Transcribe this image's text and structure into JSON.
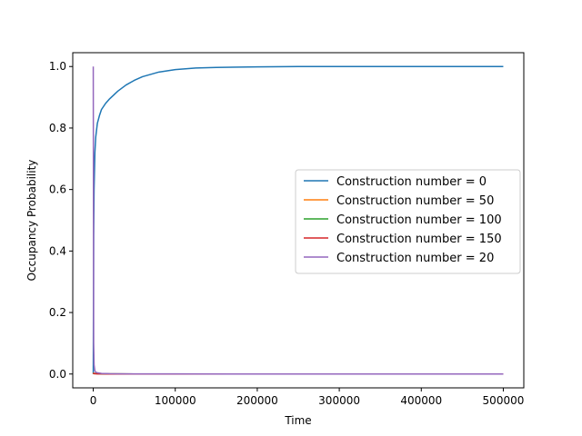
{
  "chart_data": {
    "type": "line",
    "title": "",
    "xlabel": "Time",
    "ylabel": "Occupancy Probability",
    "xlim": [
      -25000,
      525000
    ],
    "ylim": [
      -0.045,
      1.045
    ],
    "x_ticks": [
      0,
      100000,
      200000,
      300000,
      400000,
      500000
    ],
    "x_tick_labels": [
      "0",
      "100000",
      "200000",
      "300000",
      "400000",
      "500000"
    ],
    "y_ticks": [
      0.0,
      0.2,
      0.4,
      0.6,
      0.8,
      1.0
    ],
    "y_tick_labels": [
      "0.0",
      "0.2",
      "0.4",
      "0.6",
      "0.8",
      "1.0"
    ],
    "grid": false,
    "legend_position": "center-right",
    "series": [
      {
        "name": "Construction number = 0",
        "color": "#1f77b4",
        "x": [
          0,
          500,
          1000,
          2000,
          3000,
          5000,
          7500,
          10000,
          15000,
          20000,
          30000,
          40000,
          50000,
          60000,
          80000,
          100000,
          125000,
          150000,
          200000,
          250000,
          300000,
          400000,
          500000
        ],
        "y": [
          0.0,
          0.45,
          0.6,
          0.72,
          0.77,
          0.815,
          0.84,
          0.86,
          0.88,
          0.895,
          0.92,
          0.94,
          0.955,
          0.967,
          0.982,
          0.99,
          0.995,
          0.997,
          0.999,
          1.0,
          1.0,
          1.0,
          1.0
        ]
      },
      {
        "name": "Construction number = 50",
        "color": "#ff7f0e",
        "x": [
          0,
          500,
          1000,
          2000,
          5000,
          10000,
          20000,
          50000,
          100000,
          200000,
          300000,
          400000,
          500000
        ],
        "y": [
          0.0,
          0.003,
          0.002,
          0.002,
          0.001,
          0.001,
          0.0005,
          0.0002,
          0.0001,
          0.0,
          0.0,
          0.0,
          0.0
        ]
      },
      {
        "name": "Construction number = 100",
        "color": "#2ca02c",
        "x": [
          0,
          500,
          1000,
          2000,
          5000,
          10000,
          20000,
          50000,
          100000,
          200000,
          300000,
          400000,
          500000
        ],
        "y": [
          0.0,
          0.002,
          0.002,
          0.001,
          0.001,
          0.0005,
          0.0003,
          0.0001,
          0.0,
          0.0,
          0.0,
          0.0,
          0.0
        ]
      },
      {
        "name": "Construction number = 150",
        "color": "#d62728",
        "x": [
          0,
          500,
          1000,
          2000,
          5000,
          10000,
          20000,
          50000,
          100000,
          200000,
          300000,
          400000,
          500000
        ],
        "y": [
          0.0,
          0.002,
          0.001,
          0.001,
          0.0005,
          0.0003,
          0.0002,
          0.0001,
          0.0,
          0.0,
          0.0,
          0.0,
          0.0
        ]
      },
      {
        "name": "Construction number = 20",
        "color": "#9467bd",
        "x": [
          0,
          500,
          1000,
          2000,
          3000,
          5000,
          10000,
          20000,
          50000,
          100000,
          200000,
          300000,
          400000,
          500000
        ],
        "y": [
          1.0,
          0.1,
          0.03,
          0.01,
          0.006,
          0.004,
          0.002,
          0.001,
          0.0005,
          0.0003,
          0.0001,
          0.0,
          0.0,
          0.0
        ]
      }
    ]
  }
}
